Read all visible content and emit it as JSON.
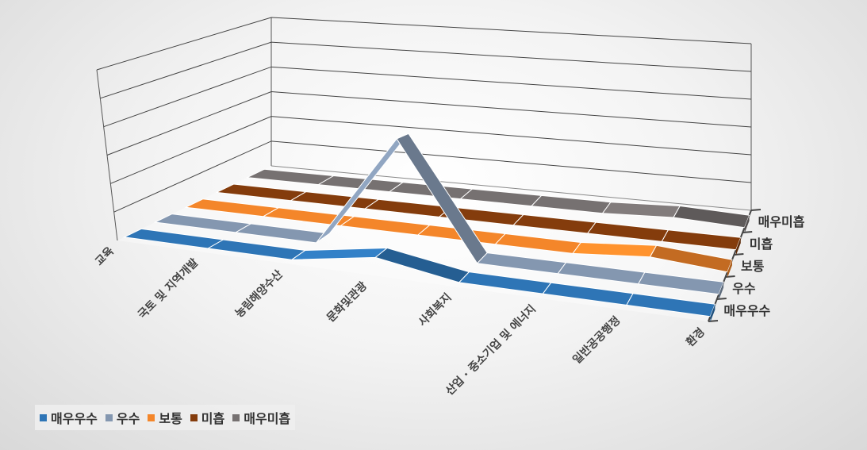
{
  "chart_data": {
    "type": "line",
    "style": "3d-ribbon",
    "categories": [
      "교육",
      "국토 및 지역개발",
      "농림해양수산",
      "문화및관광",
      "사회복지",
      "산업 · 중소기업 및 에너지",
      "일반공공행정",
      "환경"
    ],
    "depth_labels": [
      "매우우수",
      "우수",
      "보통",
      "미흡",
      "매우미흡"
    ],
    "series": [
      {
        "name": "매우우수",
        "color": "#2e75b6",
        "values": [
          0,
          0,
          0,
          1,
          0,
          0,
          0,
          0
        ]
      },
      {
        "name": "우수",
        "color": "#8497b0",
        "values": [
          0,
          0,
          0,
          9,
          0,
          0,
          0,
          0
        ]
      },
      {
        "name": "보통",
        "color": "#f4862a",
        "values": [
          0,
          0,
          0,
          0,
          0,
          0,
          0.5,
          0
        ]
      },
      {
        "name": "미흡",
        "color": "#843c0c",
        "values": [
          0,
          0,
          0,
          0,
          0,
          0,
          0,
          0
        ]
      },
      {
        "name": "매우미흡",
        "color": "#767171",
        "values": [
          0,
          0,
          0,
          0,
          0,
          0,
          0.3,
          0
        ]
      }
    ],
    "ylim": [
      0,
      12
    ],
    "gridlines": 6,
    "grid": true,
    "legend_position": "bottom-left"
  }
}
